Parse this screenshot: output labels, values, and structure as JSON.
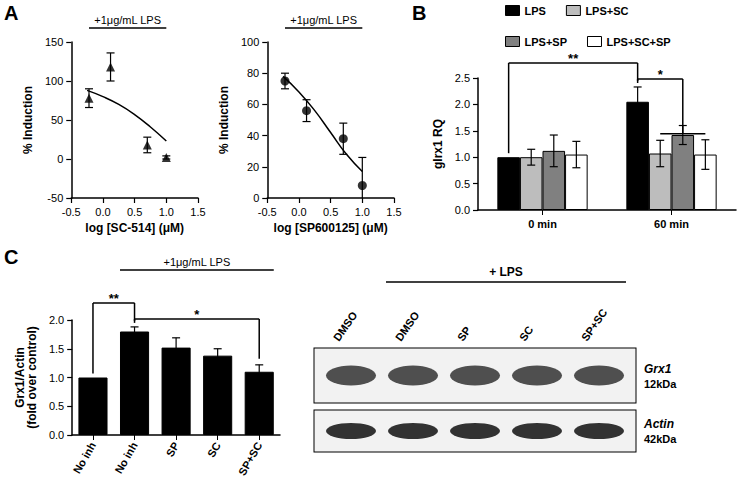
{
  "panel_labels": [
    "A",
    "B",
    "C"
  ],
  "chart_data": [
    {
      "type": "scatter",
      "annotation": {
        "text": "+1μg/mL LPS"
      },
      "x_label": "log [SC-514] (μM)",
      "y_label": "% Induction",
      "xlim": [
        -0.5,
        1.5
      ],
      "xticks": [
        -0.5,
        {
          "value": 0,
          "label": "0.0"
        },
        0.5,
        {
          "value": 1,
          "label": "1.0"
        },
        1.5
      ],
      "ylim": [
        -50,
        150
      ],
      "yticks": [
        -50,
        0,
        50,
        100,
        150
      ],
      "grid": false,
      "series": [
        {
          "type": "scatter",
          "marker": "triangle",
          "color": "#000000",
          "x": [
            -0.22,
            0.12,
            0.7,
            1.0
          ],
          "values": [
            78,
            118,
            18,
            2
          ],
          "errors": [
            12,
            18,
            10,
            2
          ]
        },
        {
          "type": "line",
          "color": "#000000",
          "x": [
            -0.25,
            0,
            0.25,
            0.5,
            0.75,
            1.0
          ],
          "values": [
            88,
            80,
            70,
            57,
            41,
            23
          ]
        }
      ]
    },
    {
      "type": "scatter",
      "annotation": {
        "text": "+1μg/mL LPS"
      },
      "x_label": "log [SP600125] (μM)",
      "y_label": "% Induction",
      "xlim": [
        -0.5,
        1.5
      ],
      "xticks": [
        -0.5,
        {
          "value": 0,
          "label": "0.0"
        },
        0.5,
        {
          "value": 1,
          "label": "1.0"
        },
        1.5
      ],
      "ylim": [
        0,
        100
      ],
      "yticks": [
        0,
        20,
        40,
        60,
        80,
        100
      ],
      "grid": false,
      "series": [
        {
          "type": "scatter",
          "marker": "circle",
          "color": "#000000",
          "x": [
            -0.22,
            0.12,
            0.7,
            1.0
          ],
          "values": [
            75,
            56,
            38,
            8
          ],
          "errors": [
            5,
            7,
            10,
            18
          ]
        },
        {
          "type": "line",
          "color": "#000000",
          "x": [
            -0.25,
            0,
            0.25,
            0.5,
            0.75,
            1.0
          ],
          "values": [
            78,
            68,
            56,
            42,
            28,
            17
          ]
        }
      ]
    },
    {
      "type": "bar",
      "y_label": "glrx1 RQ",
      "categories": [
        "0 min",
        "60 min"
      ],
      "ylim": [
        0,
        2.5
      ],
      "yticks": [
        {
          "value": 0,
          "label": "0.0"
        },
        0.5,
        {
          "value": 1,
          "label": "1.0"
        },
        1.5,
        {
          "value": 2,
          "label": "2.0"
        },
        2.5
      ],
      "legend": "top",
      "grid": false,
      "series": [
        {
          "name": "LPS",
          "color": "#000000",
          "values": [
            1.0,
            2.05
          ],
          "errors": [
            0,
            0.28
          ]
        },
        {
          "name": "LPS+SC",
          "color": "#bdbdbd",
          "values": [
            1.0,
            1.07
          ],
          "errors": [
            0.15,
            0.25
          ]
        },
        {
          "name": "LPS+SP",
          "color": "#808080",
          "values": [
            1.12,
            1.42
          ],
          "errors": [
            0.3,
            0.18
          ]
        },
        {
          "name": "LPS+SC+SP",
          "color": "#ffffff",
          "values": [
            1.05,
            1.05
          ],
          "errors": [
            0.25,
            0.28
          ]
        }
      ],
      "significance": [
        {
          "label": "*",
          "between": [
            [
              1,
              0
            ],
            [
              1,
              1
            ],
            [
              1,
              3
            ]
          ]
        },
        {
          "label": "**",
          "between": [
            [
              0,
              0
            ],
            [
              1,
              0
            ]
          ]
        }
      ]
    },
    {
      "type": "bar",
      "y_label": [
        "Grx1/Actin",
        "(fold over control)"
      ],
      "categories": [
        "No inh",
        "No inh",
        "SP",
        "SC",
        "SP+SC"
      ],
      "annotation": {
        "text": "+1μg/mL LPS",
        "from": 1,
        "to": 4
      },
      "ylim": [
        0,
        2.0
      ],
      "yticks": [
        {
          "value": 0,
          "label": "0.0"
        },
        0.5,
        {
          "value": 1,
          "label": "1.0"
        },
        1.5,
        {
          "value": 2,
          "label": "2.0"
        }
      ],
      "grid": false,
      "series": [
        {
          "color": "#000000",
          "values": [
            1.0,
            1.8,
            1.52,
            1.38,
            1.1
          ],
          "errors": [
            0,
            0.08,
            0.17,
            0.12,
            0.12
          ]
        }
      ],
      "significance": [
        {
          "label": "*",
          "between": [
            1,
            4
          ]
        },
        {
          "label": "**",
          "between": [
            0,
            1
          ]
        }
      ]
    }
  ],
  "blot": {
    "lanes": [
      "DMSO",
      "DMSO",
      "SP",
      "SC",
      "SP+SC"
    ],
    "treatment": {
      "text": "+ LPS",
      "from": 1,
      "to": 4
    },
    "bands": [
      {
        "name": "Grx1",
        "size": "12kDa"
      },
      {
        "name": "Actin",
        "size": "42kDa"
      }
    ]
  }
}
